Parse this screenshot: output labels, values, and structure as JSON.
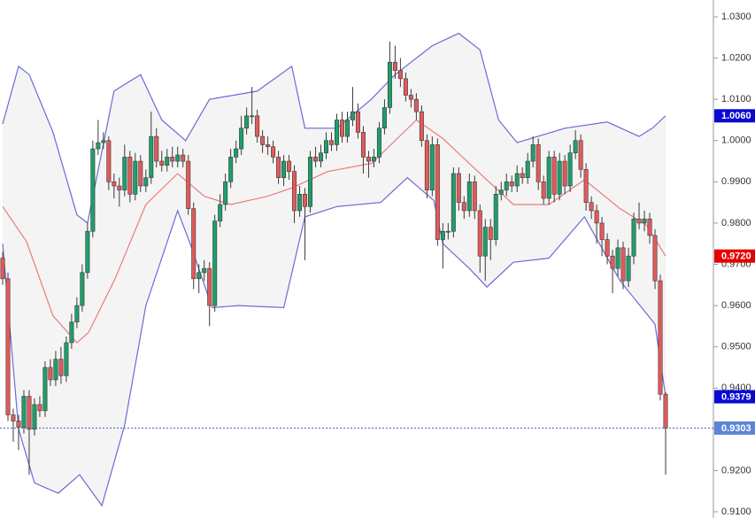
{
  "chart_data": {
    "type": "candlestick",
    "open": [
      0.9715,
      0.9665,
      0.9335,
      0.932,
      0.9305,
      0.938,
      0.93,
      0.936,
      0.9345,
      0.945,
      0.942,
      0.947,
      0.943,
      0.951,
      0.956,
      0.96,
      0.968,
      0.978,
      0.998,
      0.9995,
      1.0,
      0.99,
      0.989,
      0.988,
      0.996,
      0.987,
      0.995,
      0.989,
      0.991,
      1.001,
      0.995,
      0.994,
      0.996,
      0.995,
      0.9965,
      0.995,
      0.9835,
      0.9665,
      0.968,
      0.969,
      0.96,
      0.9805,
      0.9845,
      0.99,
      0.996,
      0.998,
      1.003,
      1.006,
      1.006,
      1.001,
      0.999,
      0.9985,
      0.996,
      0.991,
      0.995,
      0.9925,
      0.983,
      0.987,
      0.984,
      0.996,
      0.995,
      0.997,
      1.0,
      0.999,
      1.005,
      1.001,
      1.005,
      1.007,
      1.002,
      0.996,
      0.995,
      0.996,
      1.003,
      1.008,
      1.019,
      1.017,
      1.015,
      1.011,
      1.01,
      1.007,
      1.0,
      0.988,
      0.999,
      0.976,
      0.978,
      0.978,
      0.992,
      0.985,
      0.983,
      0.99,
      0.983,
      0.972,
      0.979,
      0.976,
      0.987,
      0.988,
      0.99,
      0.989,
      0.992,
      0.991,
      0.995,
      0.999,
      0.99,
      0.986,
      0.996,
      0.987,
      0.995,
      0.989,
      0.997,
      1.0,
      0.993,
      0.985,
      0.983,
      0.98,
      0.976,
      0.972,
      0.969,
      0.974,
      0.966,
      0.972,
      0.981,
      0.98,
      0.981,
      0.977,
      0.966,
      0.9385
    ],
    "high": [
      0.973,
      0.968,
      0.935,
      0.9335,
      0.9395,
      0.9395,
      0.9375,
      0.938,
      0.9465,
      0.947,
      0.949,
      0.95,
      0.9525,
      0.958,
      0.962,
      0.97,
      0.98,
      1.0,
      1.005,
      1.002,
      1.001,
      0.992,
      0.991,
      0.999,
      0.9975,
      0.997,
      0.9965,
      0.993,
      1.007,
      1.003,
      0.9975,
      0.998,
      0.9985,
      0.9985,
      0.998,
      0.9965,
      0.985,
      0.97,
      0.971,
      0.9705,
      0.982,
      0.987,
      0.992,
      0.998,
      1.0,
      1.006,
      1.008,
      1.013,
      1.0075,
      1.0025,
      1.001,
      1.0,
      0.9975,
      0.9965,
      0.9965,
      0.994,
      0.989,
      0.9885,
      0.9975,
      0.9985,
      0.999,
      1.002,
      1.002,
      1.0065,
      1.007,
      1.007,
      1.013,
      1.009,
      1.0035,
      0.9975,
      0.998,
      1.0045,
      1.01,
      1.024,
      1.023,
      1.02,
      1.0165,
      1.0125,
      1.0115,
      1.0085,
      1.0015,
      1.001,
      1.0005,
      0.98,
      0.98,
      0.9935,
      0.9935,
      0.9865,
      0.992,
      0.9915,
      0.9845,
      0.981,
      0.981,
      0.989,
      0.99,
      0.992,
      0.9915,
      0.994,
      0.9935,
      0.997,
      1.001,
      1.0005,
      0.9915,
      0.9975,
      0.9975,
      0.997,
      0.9965,
      0.999,
      1.0025,
      1.0015,
      0.9945,
      0.9865,
      0.9845,
      0.9815,
      0.9775,
      0.9735,
      0.976,
      0.9755,
      0.974,
      0.9825,
      0.985,
      0.983,
      0.9825,
      0.9785,
      0.9675,
      0.939
    ],
    "low": [
      0.965,
      0.932,
      0.927,
      0.925,
      0.929,
      0.919,
      0.9285,
      0.933,
      0.933,
      0.9405,
      0.9405,
      0.941,
      0.9415,
      0.9495,
      0.9545,
      0.9585,
      0.9665,
      0.9765,
      0.9965,
      0.998,
      0.988,
      0.986,
      0.984,
      0.9865,
      0.985,
      0.9855,
      0.9875,
      0.9875,
      0.9895,
      0.9935,
      0.9925,
      0.9925,
      0.9935,
      0.9935,
      0.9935,
      0.982,
      0.964,
      0.963,
      0.966,
      0.955,
      0.9585,
      0.979,
      0.983,
      0.9885,
      0.9945,
      0.9965,
      1.0015,
      1.004,
      0.9995,
      0.997,
      0.9965,
      0.9945,
      0.9895,
      0.989,
      0.9905,
      0.98,
      0.9815,
      0.971,
      0.9825,
      0.9935,
      0.9935,
      0.9955,
      0.9975,
      0.9975,
      0.9995,
      0.9995,
      1.0035,
      1.0005,
      0.992,
      0.991,
      0.9935,
      0.9945,
      1.0015,
      1.0065,
      1.015,
      1.013,
      1.0095,
      1.008,
      1.005,
      0.9985,
      0.986,
      0.9865,
      0.9745,
      0.969,
      0.976,
      0.9765,
      0.983,
      0.981,
      0.9815,
      0.981,
      0.968,
      0.966,
      0.971,
      0.9745,
      0.9855,
      0.9865,
      0.9875,
      0.9875,
      0.9895,
      0.9895,
      0.9935,
      0.988,
      0.9845,
      0.9845,
      0.985,
      0.9855,
      0.987,
      0.9875,
      0.9955,
      0.991,
      0.983,
      0.981,
      0.975,
      0.972,
      0.97,
      0.963,
      0.967,
      0.964,
      0.9645,
      0.97,
      0.9785,
      0.978,
      0.975,
      0.964,
      0.937,
      0.919
    ],
    "close": [
      0.9665,
      0.9335,
      0.932,
      0.9305,
      0.938,
      0.93,
      0.936,
      0.9345,
      0.945,
      0.942,
      0.947,
      0.943,
      0.951,
      0.956,
      0.96,
      0.968,
      0.978,
      0.998,
      0.9995,
      1.0,
      0.99,
      0.989,
      0.988,
      0.996,
      0.987,
      0.995,
      0.989,
      0.991,
      1.001,
      0.995,
      0.994,
      0.996,
      0.995,
      0.9965,
      0.995,
      0.9835,
      0.9665,
      0.968,
      0.969,
      0.96,
      0.9805,
      0.9845,
      0.99,
      0.996,
      0.998,
      1.003,
      1.006,
      1.006,
      1.001,
      0.999,
      0.9985,
      0.996,
      0.991,
      0.995,
      0.9925,
      0.983,
      0.987,
      0.984,
      0.996,
      0.995,
      0.997,
      1.0,
      0.999,
      1.005,
      1.001,
      1.005,
      1.007,
      1.002,
      0.996,
      0.995,
      0.996,
      1.003,
      1.008,
      1.019,
      1.017,
      1.015,
      1.011,
      1.01,
      1.007,
      1.0,
      0.988,
      0.999,
      0.976,
      0.978,
      0.978,
      0.992,
      0.985,
      0.983,
      0.99,
      0.983,
      0.972,
      0.979,
      0.976,
      0.987,
      0.988,
      0.99,
      0.989,
      0.992,
      0.991,
      0.995,
      0.999,
      0.99,
      0.986,
      0.996,
      0.987,
      0.995,
      0.989,
      0.997,
      1.0,
      0.993,
      0.985,
      0.983,
      0.98,
      0.976,
      0.972,
      0.969,
      0.974,
      0.966,
      0.972,
      0.981,
      0.98,
      0.981,
      0.977,
      0.966,
      0.9385,
      0.9303
    ],
    "up_color": "#1f9e6a",
    "down_color": "#e25a5a",
    "bands": [
      {
        "color": "#6b6bd6",
        "x": [
          0,
          3,
          5,
          9.5,
          14,
          16,
          21,
          26,
          30,
          34.5,
          39,
          48,
          54.5,
          57,
          63,
          69.5,
          74,
          81,
          86,
          90,
          93.5,
          97,
          106,
          114,
          120,
          122.5,
          125
        ],
        "values": [
          1.004,
          1.018,
          1.016,
          1.002,
          0.982,
          0.98,
          1.012,
          1.016,
          1.005,
          1.0,
          1.01,
          1.012,
          1.018,
          1.003,
          1.003,
          1.01,
          1.016,
          1.023,
          1.026,
          1.022,
          1.005,
          0.9995,
          1.003,
          1.0045,
          1.001,
          1.003,
          1.006
        ]
      },
      {
        "color": "#ee7b7b",
        "x": [
          0,
          4.5,
          9.5,
          14,
          16.2,
          21.2,
          27,
          33,
          38,
          43,
          50,
          54.5,
          61.3,
          69.6,
          78,
          83,
          89.6,
          96.3,
          103,
          109.7,
          116.4,
          121.4,
          125
        ],
        "values": [
          0.984,
          0.9755,
          0.9575,
          0.951,
          0.9535,
          0.9665,
          0.9845,
          0.992,
          0.9865,
          0.9845,
          0.9865,
          0.9885,
          0.9925,
          0.9945,
          1.005,
          1.0005,
          0.9925,
          0.9845,
          0.9845,
          0.9905,
          0.9835,
          0.9795,
          0.972
        ]
      },
      {
        "color": "#6b6bd6",
        "x": [
          0,
          3,
          6,
          10.5,
          14.5,
          18.7,
          23,
          27,
          33,
          35.5,
          39.5,
          44.5,
          53,
          57,
          63,
          71.3,
          76.3,
          81.3,
          83,
          88,
          91.3,
          96.3,
          103,
          109.7,
          116.4,
          123,
          125
        ],
        "values": [
          0.975,
          0.93,
          0.917,
          0.9145,
          0.919,
          0.9115,
          0.931,
          0.96,
          0.983,
          0.9745,
          0.9595,
          0.96,
          0.9595,
          0.9815,
          0.984,
          0.985,
          0.991,
          0.9855,
          0.975,
          0.969,
          0.9645,
          0.9705,
          0.9715,
          0.9815,
          0.966,
          0.9555,
          0.9379
        ]
      }
    ],
    "band_fill": "#f4f4f4",
    "ylim": [
      0.91,
      1.03
    ],
    "yticks": [
      {
        "value": 0.91,
        "label": "0.9100"
      },
      {
        "value": 0.92,
        "label": "0.9200"
      },
      {
        "value": 0.93,
        "label": "0.9300"
      },
      {
        "value": 0.94,
        "label": "0.9400"
      },
      {
        "value": 0.95,
        "label": "0.9500"
      },
      {
        "value": 0.96,
        "label": "0.9600"
      },
      {
        "value": 0.97,
        "label": "0.9700"
      },
      {
        "value": 0.98,
        "label": "0.9800"
      },
      {
        "value": 0.99,
        "label": "0.9900"
      },
      {
        "value": 1.0,
        "label": "1.0000"
      },
      {
        "value": 1.01,
        "label": "1.0100"
      },
      {
        "value": 1.02,
        "label": "1.0200"
      },
      {
        "value": 1.03,
        "label": "1.0300"
      }
    ],
    "price_tags": [
      {
        "value": 1.006,
        "label": "1.0060",
        "color": "#0a0ad0"
      },
      {
        "value": 0.972,
        "label": "0.9720",
        "color": "#e60000"
      },
      {
        "value": 0.9379,
        "label": "0.9379",
        "color": "#0a0ad0"
      },
      {
        "value": 0.9303,
        "label": "0.9303",
        "color": "#5b84d8"
      }
    ],
    "last_price": 0.9303,
    "last_price_color": "#3a5fb0"
  }
}
